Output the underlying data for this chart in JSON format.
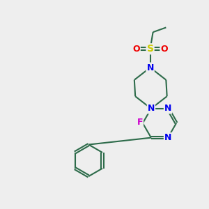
{
  "background_color": "#eeeeee",
  "bond_color": "#2d6b4a",
  "bond_width": 1.5,
  "atom_colors": {
    "N": "#0000ee",
    "F": "#cc00cc",
    "S": "#cccc00",
    "O": "#ee0000",
    "C": "#2d6b4a"
  },
  "figsize": [
    3.0,
    3.0
  ],
  "dpi": 100
}
